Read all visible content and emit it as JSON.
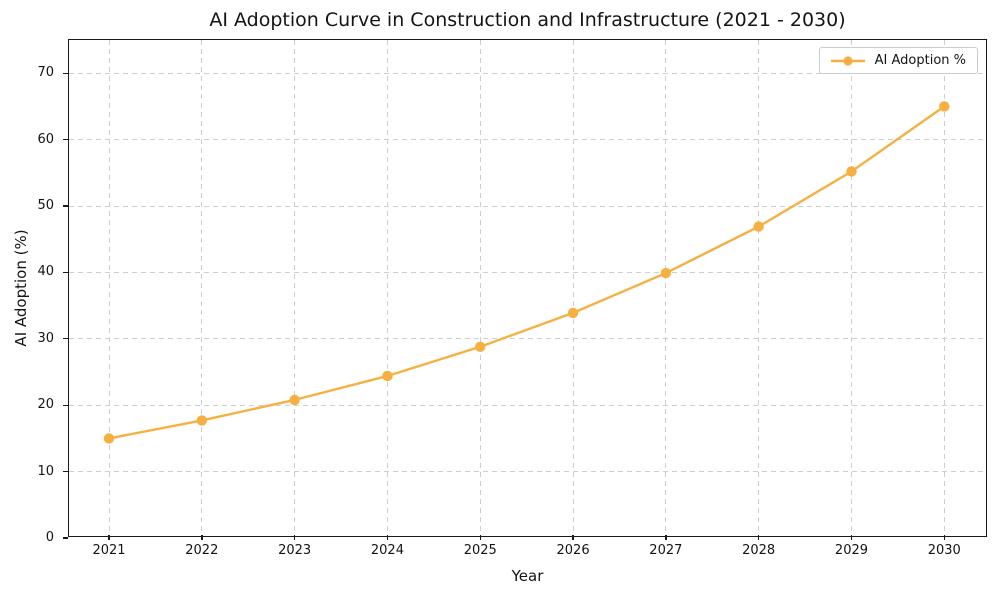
{
  "chart_data": {
    "type": "line",
    "title": "AI Adoption Curve in Construction and Infrastructure (2021 - 2030)",
    "xlabel": "Year",
    "ylabel": "AI Adoption (%)",
    "x": [
      2021,
      2022,
      2023,
      2024,
      2025,
      2026,
      2027,
      2028,
      2029,
      2030
    ],
    "series": [
      {
        "name": "AI Adoption %",
        "values": [
          15.0,
          17.7,
          20.8,
          24.4,
          28.8,
          33.9,
          39.9,
          46.9,
          55.2,
          65.0
        ],
        "color": "#F5B041",
        "marker": "circle"
      }
    ],
    "xticks": [
      2021,
      2022,
      2023,
      2024,
      2025,
      2026,
      2027,
      2028,
      2029,
      2030
    ],
    "yticks": [
      0,
      10,
      20,
      30,
      40,
      50,
      60,
      70
    ],
    "xlim": [
      2020.569,
      2030.471
    ],
    "ylim": [
      0,
      75
    ],
    "grid": true,
    "grid_style": "dashed",
    "grid_color": "#cfcfcf",
    "legend_position": "upper right",
    "legend_label": "AI Adoption %",
    "line_width": 2.4,
    "background_color": "#ffffff",
    "spine_color": "#1a1a1a"
  }
}
